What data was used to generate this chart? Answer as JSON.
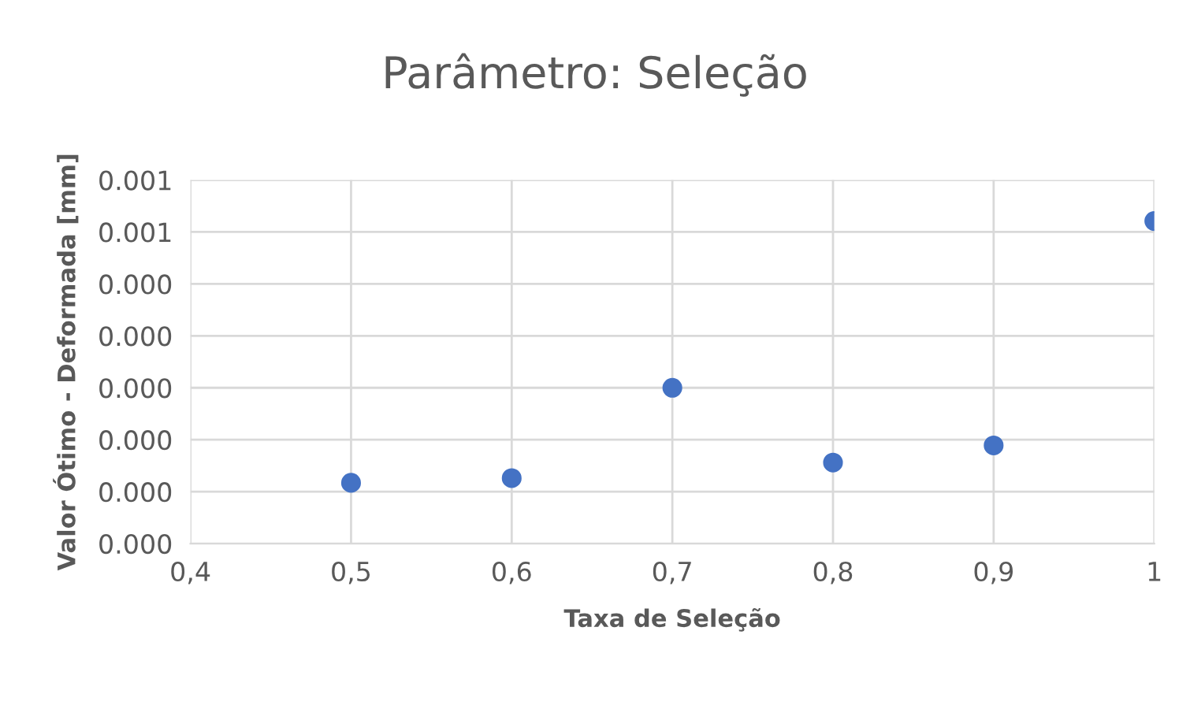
{
  "chart_data": {
    "type": "scatter",
    "title": "Parâmetro: Seleção",
    "xlabel": "Taxa de Seleção",
    "ylabel": "Valor Ótimo - Deformada [mm]",
    "x": [
      0.5,
      0.6,
      0.7,
      0.8,
      0.9,
      1.0
    ],
    "series": [
      {
        "color": "#4472c4",
        "values": [
          0.000117,
          0.000126,
          0.0003,
          0.000156,
          0.000189,
          0.000621
        ]
      }
    ],
    "xlim": [
      0.4,
      1.0
    ],
    "xticks": [
      {
        "value": 0.4,
        "label": "0,4"
      },
      {
        "value": 0.5,
        "label": "0,5"
      },
      {
        "value": 0.6,
        "label": "0,6"
      },
      {
        "value": 0.7,
        "label": "0,7"
      },
      {
        "value": 0.8,
        "label": "0,8"
      },
      {
        "value": 0.9,
        "label": "0,9"
      },
      {
        "value": 1.0,
        "label": "1"
      }
    ],
    "ylim": [
      0,
      0.0007
    ],
    "yticks": [
      {
        "value": 0,
        "label": "0.000"
      },
      {
        "value": 0.0001,
        "label": "0.000"
      },
      {
        "value": 0.0002,
        "label": "0.000"
      },
      {
        "value": 0.0003,
        "label": "0.000"
      },
      {
        "value": 0.0004,
        "label": "0.000"
      },
      {
        "value": 0.0005,
        "label": "0.000"
      },
      {
        "value": 0.0006,
        "label": "0.001"
      },
      {
        "value": 0.0007,
        "label": "0.001"
      }
    ],
    "grid": true,
    "marker": "circle",
    "legend": false
  }
}
